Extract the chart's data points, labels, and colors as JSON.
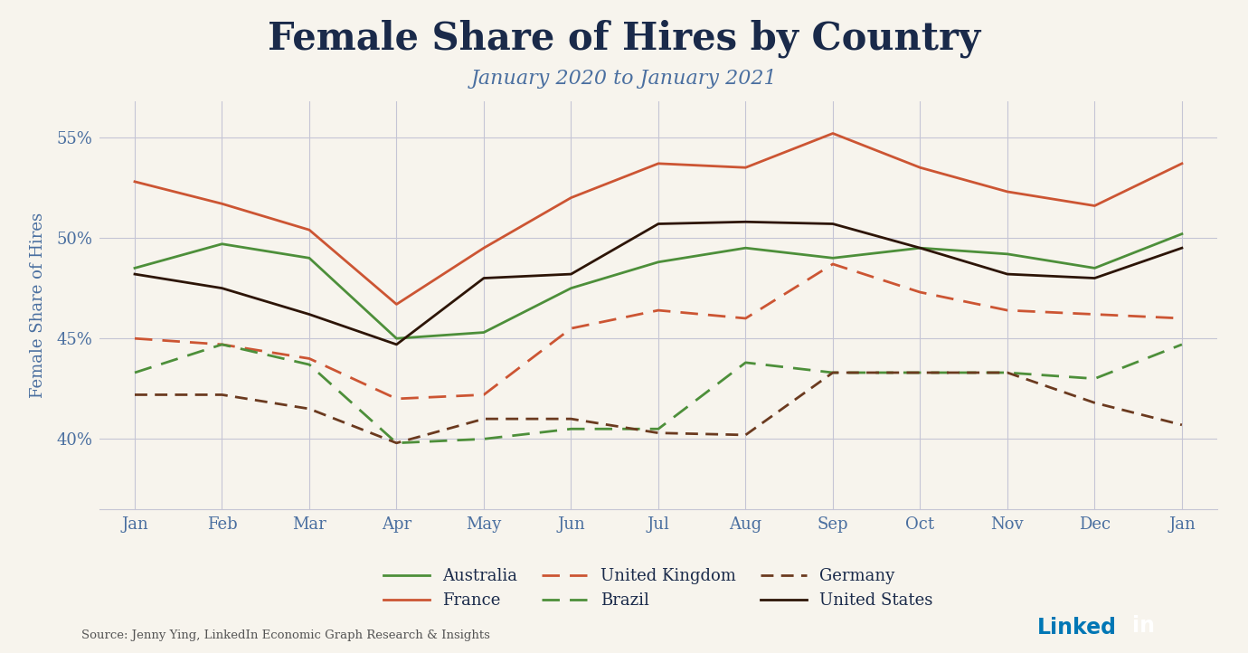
{
  "title": "Female Share of Hires by Country",
  "subtitle": "January 2020 to January 2021",
  "ylabel": "Female Share of Hires",
  "source": "Source: Jenny Ying, LinkedIn Economic Graph Research & Insights",
  "months": [
    "Jan",
    "Feb",
    "Mar",
    "Apr",
    "May",
    "Jun",
    "Jul",
    "Aug",
    "Sep",
    "Oct",
    "Nov",
    "Dec",
    "Jan"
  ],
  "australia": [
    48.5,
    49.7,
    49.0,
    45.0,
    45.3,
    47.5,
    48.8,
    49.5,
    49.0,
    49.5,
    49.2,
    48.5,
    50.2
  ],
  "france": [
    52.8,
    51.7,
    50.4,
    46.7,
    49.5,
    52.0,
    53.7,
    53.5,
    55.2,
    53.5,
    52.3,
    51.6,
    53.7
  ],
  "uk": [
    45.0,
    44.7,
    44.0,
    42.0,
    42.2,
    45.5,
    46.4,
    46.0,
    48.7,
    47.3,
    46.4,
    46.2,
    46.0
  ],
  "brazil": [
    43.3,
    44.7,
    43.7,
    39.8,
    40.0,
    40.5,
    40.5,
    43.8,
    43.3,
    43.3,
    43.3,
    43.0,
    44.7
  ],
  "germany": [
    42.2,
    42.2,
    41.5,
    39.8,
    41.0,
    41.0,
    40.3,
    40.2,
    43.3,
    43.3,
    43.3,
    41.8,
    40.7
  ],
  "us": [
    48.2,
    47.5,
    46.2,
    44.7,
    48.0,
    48.2,
    50.7,
    50.8,
    50.7,
    49.5,
    48.2,
    48.0,
    49.5
  ],
  "color_australia": "#4d8f3a",
  "color_france": "#cc5533",
  "color_uk": "#cc5533",
  "color_brazil": "#4d8f3a",
  "color_germany": "#6b3a1f",
  "color_us": "#2d1507",
  "bg_color": "#f7f4ed",
  "grid_color": "#c5c5d5",
  "title_color": "#1a2a4a",
  "subtitle_color": "#4a6fa0",
  "axis_label_color": "#4a6fa0",
  "tick_color": "#4a6fa0",
  "source_color": "#555555",
  "linkedin_blue": "#0077b5",
  "ylim": [
    36.5,
    56.8
  ],
  "yticks": [
    40,
    45,
    50,
    55
  ],
  "ytick_labels": [
    "40%",
    "45%",
    "50%",
    "55%"
  ]
}
